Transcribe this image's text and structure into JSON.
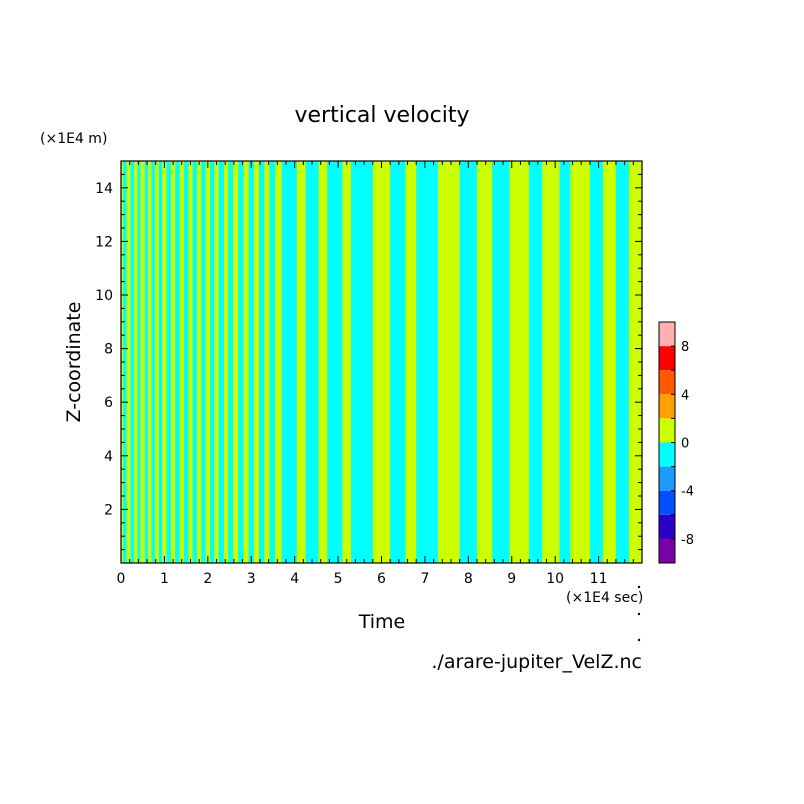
{
  "chart_data": {
    "type": "heatmap",
    "title": "vertical velocity",
    "xlabel": "Time",
    "ylabel": "Z-coordinate",
    "x_unit_label": "(×1E4 sec)",
    "y_unit_label": "(×1E4 m)",
    "xlim": [
      0,
      12
    ],
    "ylim": [
      0,
      15
    ],
    "x_ticks": [
      "0",
      "1",
      "2",
      "3",
      "4",
      "5",
      "6",
      "7",
      "8",
      "9",
      "10",
      "11"
    ],
    "y_ticks": [
      "2",
      "4",
      "6",
      "8",
      "10",
      "12",
      "14"
    ],
    "source_file": "./arare-jupiter_VelZ.nc",
    "colorbar": {
      "ticks": [
        "8",
        "4",
        "0",
        "-4",
        "-8"
      ],
      "levels": [
        -10,
        -8,
        -6,
        -4,
        -2,
        0,
        2,
        4,
        6,
        8,
        10
      ],
      "colors": [
        "#7a00a8",
        "#2a00c8",
        "#0050ff",
        "#1e9bff",
        "#00ffff",
        "#ccff00",
        "#ffa000",
        "#ff5a00",
        "#ff0000",
        "#ffb0b0"
      ]
    },
    "field_colors": {
      "negative": "#00ffff",
      "positive": "#ccff00"
    },
    "bands": [
      [
        0.0,
        0.05,
        "positive"
      ],
      [
        0.05,
        0.13,
        "negative"
      ],
      [
        0.13,
        0.22,
        "positive"
      ],
      [
        0.22,
        0.3,
        "negative"
      ],
      [
        0.3,
        0.38,
        "positive"
      ],
      [
        0.38,
        0.45,
        "negative"
      ],
      [
        0.45,
        0.55,
        "positive"
      ],
      [
        0.55,
        0.62,
        "negative"
      ],
      [
        0.62,
        0.7,
        "positive"
      ],
      [
        0.7,
        0.78,
        "negative"
      ],
      [
        0.78,
        0.87,
        "positive"
      ],
      [
        0.87,
        0.95,
        "negative"
      ],
      [
        0.95,
        1.05,
        "positive"
      ],
      [
        1.05,
        1.15,
        "negative"
      ],
      [
        1.15,
        1.25,
        "positive"
      ],
      [
        1.25,
        1.35,
        "negative"
      ],
      [
        1.35,
        1.45,
        "positive"
      ],
      [
        1.45,
        1.55,
        "negative"
      ],
      [
        1.55,
        1.65,
        "positive"
      ],
      [
        1.65,
        1.75,
        "negative"
      ],
      [
        1.75,
        1.85,
        "positive"
      ],
      [
        1.85,
        1.95,
        "negative"
      ],
      [
        1.95,
        2.05,
        "positive"
      ],
      [
        2.05,
        2.15,
        "negative"
      ],
      [
        2.15,
        2.25,
        "positive"
      ],
      [
        2.25,
        2.37,
        "negative"
      ],
      [
        2.37,
        2.47,
        "positive"
      ],
      [
        2.47,
        2.58,
        "negative"
      ],
      [
        2.58,
        2.7,
        "positive"
      ],
      [
        2.7,
        2.82,
        "negative"
      ],
      [
        2.82,
        2.94,
        "positive"
      ],
      [
        2.94,
        3.06,
        "negative"
      ],
      [
        3.06,
        3.18,
        "positive"
      ],
      [
        3.18,
        3.3,
        "negative"
      ],
      [
        3.3,
        3.42,
        "positive"
      ],
      [
        3.42,
        3.55,
        "negative"
      ],
      [
        3.55,
        3.7,
        "positive"
      ],
      [
        3.7,
        4.05,
        "negative"
      ],
      [
        4.05,
        4.25,
        "positive"
      ],
      [
        4.25,
        4.55,
        "negative"
      ],
      [
        4.55,
        4.75,
        "positive"
      ],
      [
        4.75,
        5.1,
        "negative"
      ],
      [
        5.1,
        5.3,
        "positive"
      ],
      [
        5.3,
        5.8,
        "negative"
      ],
      [
        5.8,
        6.2,
        "positive"
      ],
      [
        6.2,
        6.55,
        "negative"
      ],
      [
        6.55,
        6.8,
        "positive"
      ],
      [
        6.8,
        7.3,
        "negative"
      ],
      [
        7.3,
        7.8,
        "positive"
      ],
      [
        7.8,
        8.2,
        "negative"
      ],
      [
        8.2,
        8.55,
        "positive"
      ],
      [
        8.55,
        8.95,
        "negative"
      ],
      [
        8.95,
        9.4,
        "positive"
      ],
      [
        9.4,
        9.7,
        "negative"
      ],
      [
        9.7,
        10.1,
        "positive"
      ],
      [
        10.1,
        10.35,
        "negative"
      ],
      [
        10.35,
        10.8,
        "positive"
      ],
      [
        10.8,
        11.1,
        "negative"
      ],
      [
        11.1,
        11.4,
        "positive"
      ],
      [
        11.4,
        11.7,
        "negative"
      ],
      [
        11.7,
        12.0,
        "positive"
      ]
    ]
  }
}
